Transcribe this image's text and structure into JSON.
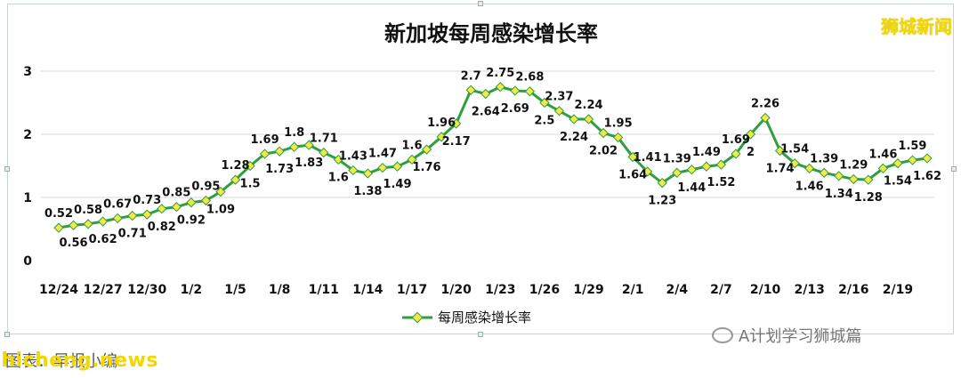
{
  "watermark_top": "狮城新闻",
  "footer": {
    "source": "图表：早报小编",
    "site": "shicheng.news",
    "account": "A计划学习狮城篇"
  },
  "icons": {
    "wechat": "wechat-icon"
  },
  "chart_data": {
    "type": "line",
    "title": "新加坡每周感染增长率",
    "legend": {
      "label": "每周感染增长率",
      "position": "bottom"
    },
    "ylim": [
      0,
      3
    ],
    "yticks": [
      0,
      1,
      2,
      3
    ],
    "xtick_labels": [
      "12/24",
      "12/27",
      "12/30",
      "1/2",
      "1/5",
      "1/8",
      "1/11",
      "1/14",
      "1/17",
      "1/20",
      "1/23",
      "1/26",
      "1/29",
      "2/1",
      "2/4",
      "2/7",
      "2/10",
      "2/13",
      "2/16",
      "2/19"
    ],
    "xtick_step": 3,
    "grid": true,
    "colors": {
      "line": "#2e9e3e",
      "marker": "#f3e84a",
      "grid": "#d9d9d9"
    },
    "values": [
      0.52,
      0.56,
      0.58,
      0.62,
      0.67,
      0.71,
      0.73,
      0.82,
      0.85,
      0.92,
      0.95,
      1.09,
      1.28,
      1.5,
      1.69,
      1.73,
      1.8,
      1.83,
      1.71,
      1.6,
      1.43,
      1.38,
      1.47,
      1.49,
      1.6,
      1.76,
      1.96,
      2.17,
      2.7,
      2.64,
      2.75,
      2.69,
      2.68,
      2.5,
      2.37,
      2.24,
      2.24,
      2.02,
      1.95,
      1.64,
      1.41,
      1.23,
      1.39,
      1.44,
      1.49,
      1.52,
      1.69,
      2,
      2.26,
      1.74,
      1.54,
      1.46,
      1.39,
      1.34,
      1.29,
      1.28,
      1.46,
      1.54,
      1.59,
      1.62
    ],
    "label_positions": [
      "above",
      "below",
      "above",
      "below",
      "above",
      "below",
      "above",
      "below",
      "above",
      "below",
      "above",
      "below",
      "above",
      "below",
      "above",
      "below",
      "above",
      "below",
      "above",
      "below",
      "above",
      "below",
      "above",
      "below",
      "above",
      "below",
      "above",
      "below",
      "above",
      "below",
      "above",
      "below",
      "above",
      "below",
      "above",
      "below",
      "above",
      "below",
      "above",
      "below",
      "above",
      "below",
      "above",
      "below",
      "above",
      "below",
      "above",
      "below",
      "above",
      "below",
      "above",
      "below",
      "above",
      "below",
      "above",
      "below",
      "above",
      "below",
      "above",
      "below"
    ]
  }
}
